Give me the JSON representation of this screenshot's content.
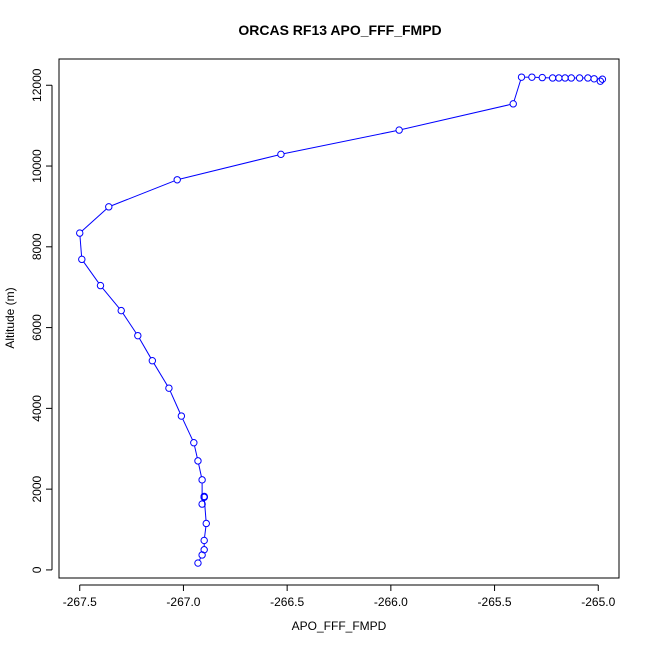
{
  "chart_data": {
    "type": "line",
    "title": "ORCAS RF13 APO_FFF_FMPD",
    "xlabel": "APO_FFF_FMPD",
    "ylabel": "Altitude (m)",
    "xlim": [
      -267.6,
      -264.9
    ],
    "ylim": [
      -200,
      12650
    ],
    "xticks": [
      -267.5,
      -267.0,
      -266.5,
      -266.0,
      -265.5,
      -265.0
    ],
    "xtick_labels": [
      "-267.5",
      "-267.0",
      "-266.5",
      "-266.0",
      "-265.5",
      "-265.0"
    ],
    "yticks": [
      0,
      2000,
      4000,
      6000,
      8000,
      10000,
      12000
    ],
    "ytick_labels": [
      "0",
      "2000",
      "4000",
      "6000",
      "8000",
      "10000",
      "12000"
    ],
    "grid": false,
    "series": [
      {
        "color": "#0000ff",
        "marker": "open-circle",
        "x": [
          -264.98,
          -264.99,
          -265.02,
          -265.05,
          -265.09,
          -265.13,
          -265.16,
          -265.19,
          -265.22,
          -265.27,
          -265.32,
          -265.37,
          -265.41,
          -265.96,
          -266.53,
          -267.03,
          -267.36,
          -267.5,
          -267.49,
          -267.4,
          -267.3,
          -267.22,
          -267.15,
          -267.07,
          -267.01,
          -266.95,
          -266.93,
          -266.91,
          -266.91,
          -266.9,
          -266.9,
          -266.9,
          -266.89,
          -266.9,
          -266.9,
          -266.91,
          -266.93
        ],
        "y": [
          12150,
          12100,
          12160,
          12180,
          12180,
          12180,
          12180,
          12180,
          12180,
          12190,
          12200,
          12200,
          11540,
          10890,
          10290,
          9660,
          8990,
          8340,
          7690,
          7040,
          6420,
          5800,
          5180,
          4500,
          3810,
          3150,
          2700,
          2230,
          1630,
          1800,
          1820,
          1800,
          1150,
          730,
          500,
          370,
          170
        ]
      }
    ]
  }
}
